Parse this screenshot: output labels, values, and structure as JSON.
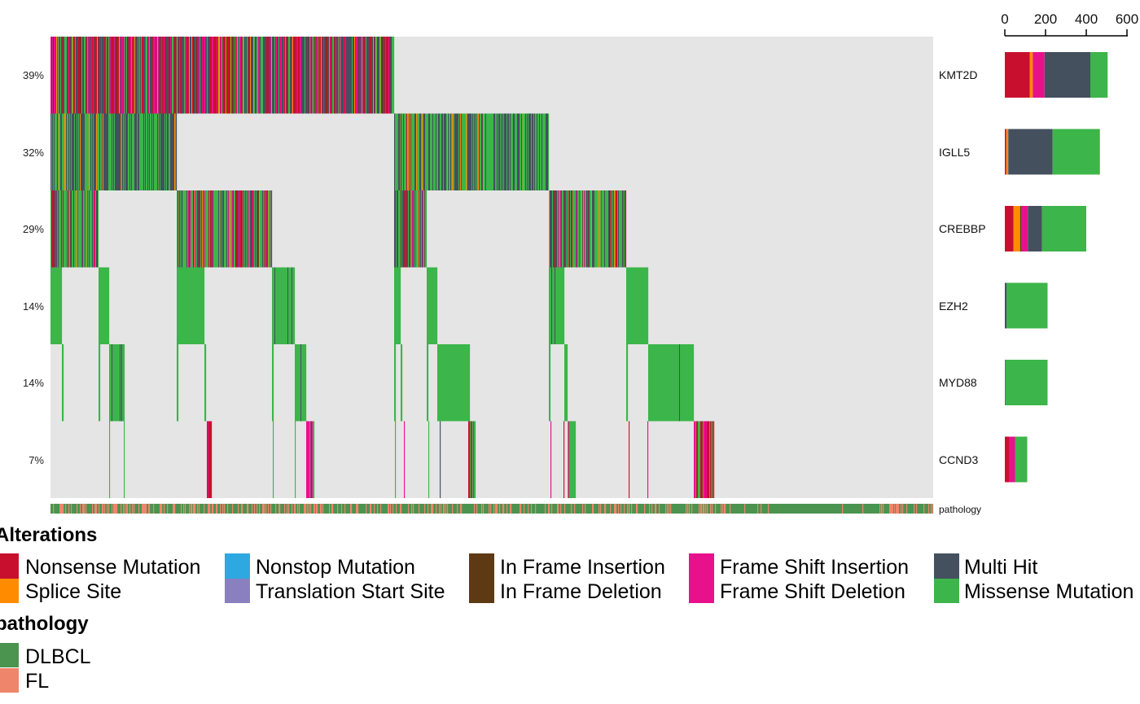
{
  "chart_data": {
    "type": "heatmap",
    "genes": [
      "KMT2D",
      "IGLL5",
      "CREBBP",
      "EZH2",
      "MYD88",
      "CCND3"
    ],
    "percentages": [
      "39%",
      "32%",
      "29%",
      "14%",
      "14%",
      "7%"
    ],
    "bar_axis_ticks": [
      "0",
      "200",
      "400",
      "600"
    ],
    "bar_axis_range": [
      0,
      600
    ],
    "alteration_categories": [
      "Nonsense Mutation",
      "Splice Site",
      "Nonstop Mutation",
      "Translation Start Site",
      "In Frame Insertion",
      "In Frame Deletion",
      "Frame Shift Insertion",
      "Frame Shift Deletion",
      "Multi Hit",
      "Missense Mutation"
    ],
    "colors": {
      "Nonsense Mutation": "#C8102E",
      "Splice Site": "#FF8C00",
      "Nonstop Mutation": "#2EA8E0",
      "Translation Start Site": "#8A80BF",
      "In Frame Insertion": "#5E3A14",
      "In Frame Deletion": "#5E3A14",
      "Frame Shift Insertion": "#E8118C",
      "Frame Shift Deletion": "#E8118C",
      "Multi Hit": "#44505E",
      "Missense Mutation": "#3CB54A",
      "DLBCL": "#4A9450",
      "FL": "#EF856A",
      "background": "#E5E5E5"
    },
    "bar_counts": [
      {
        "gene": "KMT2D",
        "Nonsense Mutation": 122,
        "Splice Site": 15,
        "Frame Shift Insertion": 58,
        "Multi Hit": 225,
        "Missense Mutation": 85
      },
      {
        "gene": "IGLL5",
        "Nonsense Mutation": 7,
        "Splice Site": 10,
        "Multi Hit": 218,
        "Missense Mutation": 232
      },
      {
        "gene": "CREBBP",
        "Nonsense Mutation": 43,
        "Splice Site": 32,
        "In Frame Deletion": 8,
        "Frame Shift Insertion": 30,
        "Multi Hit": 70,
        "Missense Mutation": 217
      },
      {
        "gene": "EZH2",
        "Multi Hit": 8,
        "Missense Mutation": 202
      },
      {
        "gene": "MYD88",
        "Multi Hit": 3,
        "Missense Mutation": 207
      },
      {
        "gene": "CCND3",
        "Nonsense Mutation": 20,
        "Frame Shift Insertion": 30,
        "Missense Mutation": 60
      }
    ]
  },
  "legend": {
    "alterations_title": "Alterations",
    "items": [
      {
        "label": "Nonsense Mutation",
        "color": "#C8102E"
      },
      {
        "label": "Splice Site",
        "color": "#FF8C00"
      },
      {
        "label": "Nonstop Mutation",
        "color": "#2EA8E0"
      },
      {
        "label": "Translation Start Site",
        "color": "#8A80BF"
      },
      {
        "label": "In Frame Insertion",
        "color": "#5E3A14"
      },
      {
        "label": "In Frame Deletion",
        "color": "#5E3A14"
      },
      {
        "label": "Frame Shift Insertion",
        "color": "#E8118C"
      },
      {
        "label": "Frame Shift Deletion",
        "color": "#E8118C"
      },
      {
        "label": "Multi Hit",
        "color": "#44505E"
      },
      {
        "label": "Missense Mutation",
        "color": "#3CB54A"
      }
    ],
    "pathology_title": "pathology",
    "pathology_items": [
      {
        "label": "DLBCL",
        "color": "#4A9450"
      },
      {
        "label": "FL",
        "color": "#EF856A"
      }
    ]
  },
  "annotation_track_label": "pathology"
}
